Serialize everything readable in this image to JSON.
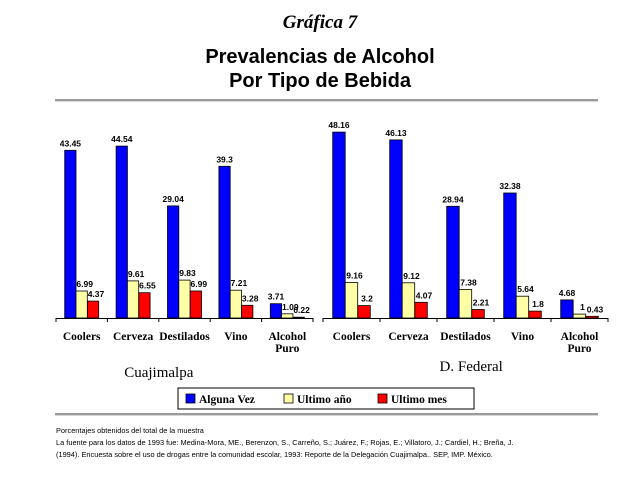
{
  "header": {
    "kicker": "Gráfica 7",
    "title_line1": "Prevalencias de Alcohol",
    "title_line2": "Por Tipo de Bebida"
  },
  "chart_data": [
    {
      "type": "bar",
      "title": "Cuajimalpa",
      "categories": [
        "Coolers",
        "Cerveza",
        "Destilados",
        "Vino",
        "Alcohol Puro"
      ],
      "ylim": [
        0,
        50
      ],
      "series": [
        {
          "name": "Alguna Vez",
          "values": [
            43.45,
            44.54,
            29.04,
            39.3,
            3.71
          ],
          "labels": [
            "43.45",
            "44.54",
            "29.04",
            "39.3",
            "3.71"
          ]
        },
        {
          "name": "Ultimo año",
          "values": [
            6.99,
            9.61,
            9.83,
            7.21,
            1.09
          ],
          "labels": [
            "6.99",
            "9.61",
            "9.83",
            "7.21",
            "1.09"
          ]
        },
        {
          "name": "Ultimo mes",
          "values": [
            4.37,
            6.55,
            6.99,
            3.28,
            0.22
          ],
          "labels": [
            "4.37",
            "6.55",
            "6.99",
            "3.28",
            "0.22"
          ]
        }
      ]
    },
    {
      "type": "bar",
      "title": "D. Federal",
      "categories": [
        "Coolers",
        "Cerveza",
        "Destilados",
        "Vino",
        "Alcohol Puro"
      ],
      "ylim": [
        0,
        50
      ],
      "series": [
        {
          "name": "Alguna Vez",
          "values": [
            48.16,
            46.13,
            28.94,
            32.38,
            4.68
          ],
          "labels": [
            "48.16",
            "46.13",
            "28.94",
            "32.38",
            "4.68"
          ]
        },
        {
          "name": "Ultimo año",
          "values": [
            9.16,
            9.12,
            7.38,
            5.64,
            1
          ],
          "labels": [
            "9.16",
            "9.12",
            "7.38",
            "5.64",
            "1"
          ]
        },
        {
          "name": "Ultimo mes",
          "values": [
            3.2,
            4.07,
            2.21,
            1.8,
            0.43
          ],
          "labels": [
            "3.2",
            "4.07",
            "2.21",
            "1.8",
            "0.43"
          ]
        }
      ]
    }
  ],
  "legend": {
    "items": [
      {
        "name": "Alguna Vez",
        "color": "#0000ff"
      },
      {
        "name": "Ultimo año",
        "color": "#ffffa6"
      },
      {
        "name": "Ultimo mes",
        "color": "#ff0000"
      }
    ]
  },
  "notes": {
    "line1": "Porcentajes obtenidos del total de la muestra",
    "line2": "La fuente para los datos de 1993 fue: Medina-Mora, ME., Berenzon, S., Carreño, S.; Juárez, F.; Rojas, E.; Villatoro, J.; Cardiel, H.; Breña, J.",
    "line3": "(1994). Encuesta sobre el uso de drogas entre la comunidad escolar, 1993: Reporte de la Delegación Cuajimalpa.. SEP, IMP. México."
  }
}
